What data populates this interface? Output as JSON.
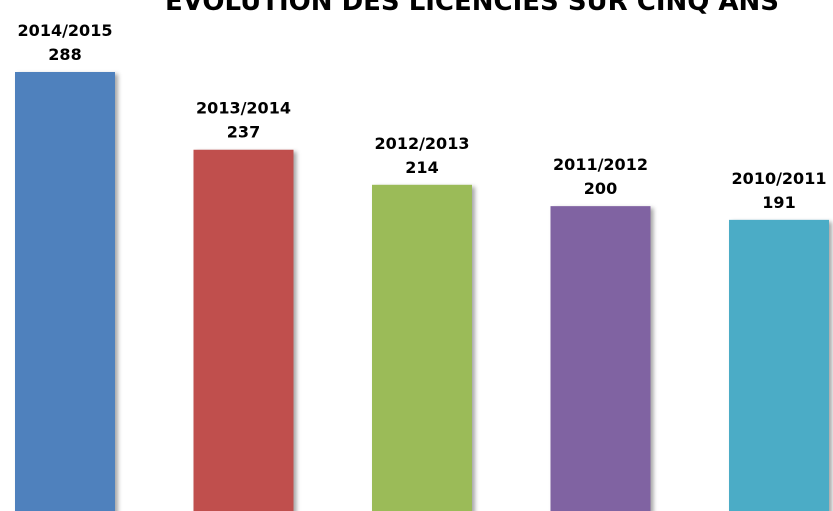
{
  "chart_data": {
    "type": "bar",
    "title": "ÉVOLUTION DES LICENCIÉS SUR CINQ ANS",
    "xlabel": "",
    "ylabel": "",
    "categories": [
      "2014/2015",
      "2013/2014",
      "2012/2013",
      "2011/2012",
      "2010/2011"
    ],
    "values": [
      288,
      237,
      214,
      200,
      191
    ],
    "colors": [
      "#4f81bd",
      "#c0504d",
      "#9bbb59",
      "#8064a2",
      "#4bacc6"
    ],
    "ylim": [
      0,
      288
    ],
    "grid": false,
    "legend": "none",
    "data_labels": true
  }
}
